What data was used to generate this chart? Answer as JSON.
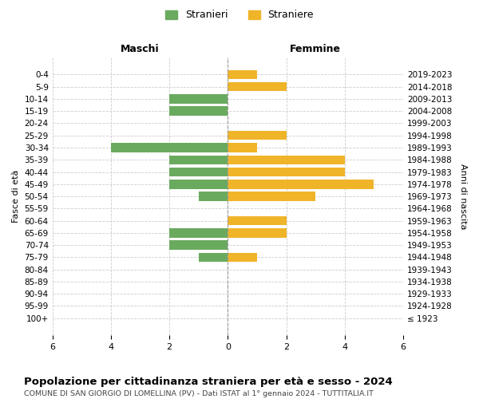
{
  "age_groups": [
    "100+",
    "95-99",
    "90-94",
    "85-89",
    "80-84",
    "75-79",
    "70-74",
    "65-69",
    "60-64",
    "55-59",
    "50-54",
    "45-49",
    "40-44",
    "35-39",
    "30-34",
    "25-29",
    "20-24",
    "15-19",
    "10-14",
    "5-9",
    "0-4"
  ],
  "birth_years": [
    "≤ 1923",
    "1924-1928",
    "1929-1933",
    "1934-1938",
    "1939-1943",
    "1944-1948",
    "1949-1953",
    "1954-1958",
    "1959-1963",
    "1964-1968",
    "1969-1973",
    "1974-1978",
    "1979-1983",
    "1984-1988",
    "1989-1993",
    "1994-1998",
    "1999-2003",
    "2004-2008",
    "2009-2013",
    "2014-2018",
    "2019-2023"
  ],
  "males": [
    0,
    0,
    0,
    0,
    0,
    1,
    2,
    2,
    0,
    0,
    1,
    2,
    2,
    2,
    4,
    0,
    0,
    2,
    2,
    0,
    0
  ],
  "females": [
    0,
    0,
    0,
    0,
    0,
    1,
    0,
    2,
    2,
    0,
    3,
    5,
    4,
    4,
    1,
    2,
    0,
    0,
    0,
    2,
    1
  ],
  "male_color": "#6aaa5e",
  "female_color": "#f0b429",
  "male_label": "Stranieri",
  "female_label": "Straniere",
  "xlim": 6,
  "title": "Popolazione per cittadinanza straniera per età e sesso - 2024",
  "subtitle": "COMUNE DI SAN GIORGIO DI LOMELLINA (PV) - Dati ISTAT al 1° gennaio 2024 - TUTTITALIA.IT",
  "left_header": "Maschi",
  "right_header": "Femmine",
  "y_left_label": "Fasce di età",
  "y_right_label": "Anni di nascita",
  "bg_color": "#ffffff",
  "grid_color": "#cccccc"
}
